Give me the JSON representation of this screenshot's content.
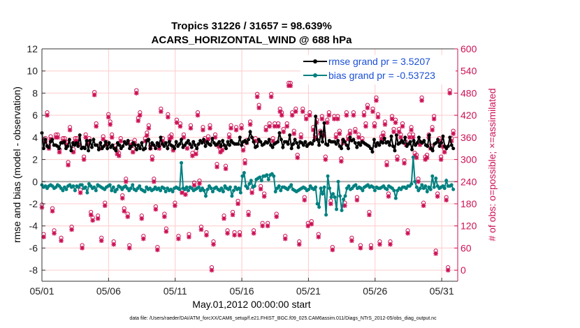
{
  "chart_data": {
    "type": "line",
    "title": "Tropics 31226 / 31657 = 98.639%",
    "subtitle": "ACARS_HORIZONTAL_WIND @ 688 hPa",
    "xlabel": "May.01,2012 00:00:00 start",
    "ylabel_left": "rmse and bias (model - observation)",
    "ylabel_right": "# of obs: o=possible; ×=assimilated",
    "footnote": "data file: /Users/raeder/DAI/ATM_forcXX/CAM6_setup/f.e21.FHIST_BGC.f09_025.CAM6assim.011/Diags_NTrS_2012-05/obs_diag_output.nc",
    "xlim": [
      1,
      32.2
    ],
    "ylim_left": [
      -9,
      12
    ],
    "ylim_right": [
      -30,
      600
    ],
    "x_ticks": [
      1,
      6,
      11,
      16,
      21,
      26,
      31
    ],
    "x_tick_labels": [
      "05/01",
      "05/06",
      "05/11",
      "05/16",
      "05/21",
      "05/26",
      "05/31"
    ],
    "y_ticks_left": [
      -8,
      -6,
      -4,
      -2,
      0,
      2,
      4,
      6,
      8,
      10,
      12
    ],
    "y_ticks_right": [
      0,
      60,
      120,
      180,
      240,
      300,
      360,
      420,
      480,
      540,
      600
    ],
    "legend_position": "top-right",
    "legend": [
      "rmse grand pr = 3.5207",
      "bias grand pr = -0.53723"
    ],
    "colors": {
      "rmse": "#000000",
      "bias": "#008080",
      "obs": "#cc1155",
      "zero": "#aaaaaa",
      "grid": "#ffcccc",
      "legend_text": "#1a4fd6"
    },
    "series": [
      {
        "name": "rmse",
        "axis": "left",
        "values": [
          4.4,
          3.0,
          3.8,
          3.2,
          3.1,
          3.6,
          3.8,
          3.3,
          3.3,
          3.2,
          3.0,
          3.5,
          3.5,
          3.6,
          3.0,
          3.2,
          3.8,
          2.8,
          3.5,
          3.3,
          3.5,
          3.2,
          4.2,
          3.0,
          3.1,
          3.0,
          3.7,
          2.8,
          3.7,
          3.1,
          3.8,
          3.3,
          3.3,
          2.9,
          3.5,
          3.0,
          3.2,
          3.6,
          3.0,
          3.5,
          3.1,
          3.3,
          3.0,
          2.8,
          3.5,
          3.3,
          3.0,
          3.2,
          3.6,
          3.4,
          3.7,
          3.0,
          3.2,
          3.5,
          3.3,
          2.9,
          3.3,
          3.0,
          3.5,
          2.9,
          3.0,
          3.7,
          3.8,
          3.0,
          3.5,
          3.3,
          3.0,
          3.5,
          3.2,
          4.0,
          3.4,
          3.2,
          3.5,
          3.0,
          3.6,
          3.3,
          3.2,
          3.0,
          3.6,
          3.2,
          3.4,
          3.8,
          3.1,
          3.3,
          3.5,
          3.7,
          3.4,
          3.1,
          3.6,
          3.3,
          3.0,
          3.4,
          3.7,
          3.5,
          3.8,
          3.2,
          3.6,
          3.4,
          3.3,
          3.9,
          3.5,
          3.3,
          3.4,
          3.6,
          3.2,
          3.7,
          3.3,
          3.0,
          3.6,
          3.3,
          3.7,
          3.5,
          3.4,
          3.4,
          3.4,
          4.0,
          3.3,
          3.6,
          3.7,
          3.5,
          3.8,
          4.5,
          4.0,
          3.6,
          3.1,
          3.2,
          3.8,
          3.6,
          3.3,
          3.4,
          3.6,
          3.5,
          3.8,
          3.3,
          3.1,
          3.4,
          3.5,
          3.6,
          4.4,
          3.8,
          3.1,
          3.6,
          3.6,
          3.4,
          4.2,
          3.0,
          3.4,
          3.8,
          3.5,
          3.1,
          3.6,
          3.5,
          3.3,
          3.6,
          3.2,
          3.4,
          3.5,
          3.4,
          3.7,
          5.9,
          3.8,
          3.3,
          4.5,
          3.6,
          5.3,
          3.4,
          3.3,
          3.7,
          3.6,
          3.6,
          3.6,
          3.4,
          3.7,
          3.2,
          3.0,
          3.8,
          3.6,
          3.3,
          3.0,
          4.0,
          3.7,
          3.8,
          3.5,
          3.1,
          3.5,
          3.3,
          3.6,
          3.5,
          3.4,
          3.3,
          3.2,
          3.0,
          2.7,
          3.8,
          3.2,
          3.5,
          3.3,
          3.6,
          3.5,
          3.9,
          3.5,
          3.6,
          3.3,
          4.1,
          3.2,
          2.8,
          4.2,
          3.4,
          3.5,
          3.7,
          3.5,
          4.0,
          3.2,
          3.4,
          3.6,
          2.9,
          3.7,
          3.3,
          3.5,
          4.0,
          3.6,
          3.5,
          3.7,
          3.3,
          3.2,
          4.2,
          3.0,
          2.8,
          3.4,
          3.5,
          3.8,
          3.2,
          3.5,
          4.1,
          3.2,
          3.0,
          3.2,
          4.0,
          3.3,
          3.0
        ]
      },
      {
        "name": "bias",
        "axis": "left",
        "values": [
          -0.3,
          -0.5,
          -0.4,
          -0.6,
          -0.4,
          -0.3,
          -0.4,
          -0.6,
          -0.5,
          -0.3,
          -0.4,
          -0.6,
          -0.8,
          -0.5,
          -0.7,
          -0.4,
          -0.3,
          -0.5,
          -0.4,
          -0.8,
          -0.4,
          -0.5,
          -0.3,
          -0.3,
          -0.6,
          -0.5,
          -1.0,
          -0.2,
          -0.4,
          -0.6,
          -0.5,
          -0.8,
          -0.3,
          -0.4,
          -0.5,
          -0.6,
          -0.7,
          -0.5,
          -0.4,
          -0.3,
          -0.8,
          -0.5,
          -0.9,
          -0.7,
          -0.4,
          -0.5,
          -0.7,
          -0.5,
          -0.4,
          -0.6,
          -0.8,
          -0.6,
          -0.3,
          -0.7,
          -0.8,
          -0.6,
          -0.4,
          -0.7,
          -0.8,
          -0.9,
          -0.5,
          -0.7,
          -0.6,
          -0.8,
          -0.7,
          -0.5,
          -0.7,
          -0.6,
          -0.8,
          -0.5,
          -0.6,
          -0.9,
          -0.6,
          -0.8,
          -0.7,
          -0.9,
          -0.6,
          -0.5,
          -0.6,
          -0.7,
          1.7,
          -0.6,
          -0.7,
          -0.5,
          -0.8,
          -0.5,
          -0.6,
          -0.8,
          -0.7,
          -0.6,
          -0.5,
          -0.8,
          -0.6,
          -0.8,
          -1.3,
          -0.7,
          -0.4,
          -0.6,
          -0.9,
          -0.6,
          -0.5,
          -0.7,
          -0.8,
          -0.6,
          -0.9,
          -0.4,
          -0.6,
          -0.7,
          -0.5,
          -1.3,
          -0.8,
          -0.5,
          -0.7,
          -0.6,
          -1.0,
          0.5,
          0.8,
          -0.4,
          -0.6,
          -0.2,
          0.1,
          -0.5,
          -0.4,
          0.2,
          0.3,
          0.4,
          0.1,
          0.5,
          0.5,
          0.6,
          0.2,
          0.6,
          0.7,
          0.5,
          -0.9,
          -0.6,
          -0.4,
          -0.8,
          -0.5,
          -0.5,
          -0.6,
          -0.7,
          -0.5,
          -0.3,
          -0.7,
          -0.8,
          -0.9,
          -0.8,
          -0.7,
          -0.6,
          -0.5,
          -0.6,
          -0.8,
          -0.7,
          -0.4,
          -0.6,
          -0.7,
          -0.5,
          -2.0,
          -2.3,
          -0.6,
          -1.1,
          -0.5,
          -3.0,
          0.5,
          -0.6,
          -1.4,
          -1.1,
          -1.4,
          -2.5,
          0.0,
          -1.3,
          -2.6,
          -1.6,
          -1.3,
          -0.6,
          -0.4,
          -0.7,
          -0.6,
          -0.4,
          -0.3,
          -0.6,
          -0.5,
          -0.6,
          -0.8,
          -0.5,
          -0.4,
          -0.3,
          -0.5,
          -0.4,
          -0.5,
          -0.8,
          -0.5,
          -0.6,
          -0.6,
          -0.5,
          -0.4,
          -0.6,
          -0.7,
          -0.4,
          -0.5,
          -0.6,
          -0.8,
          -1.5,
          -0.8,
          -0.6,
          -0.7,
          -0.5,
          -0.5,
          -0.6,
          -0.4,
          -0.4,
          -0.2,
          2.2,
          0.0,
          -0.5,
          -0.8,
          -0.6,
          -0.3,
          -0.6,
          -0.4,
          -0.9,
          -0.5,
          -0.7,
          0.5,
          -0.5,
          0.3,
          -0.4,
          -0.6,
          -0.5,
          -0.4,
          -0.6,
          0.1,
          -0.4,
          -0.4,
          -0.3,
          -0.7
        ]
      },
      {
        "name": "obs_possible",
        "axis": "right",
        "values": [
          170,
          90,
          350,
          420,
          330,
          355,
          160,
          100,
          360,
          360,
          320,
          80,
          350,
          350,
          340,
          285,
          380,
          110,
          320,
          350,
          350,
          340,
          210,
          60,
          300,
          360,
          340,
          350,
          150,
          135,
          475,
          390,
          140,
          330,
          80,
          355,
          175,
          340,
          415,
          395,
          360,
          70,
          330,
          315,
          310,
          350,
          195,
          160,
          240,
          145,
          60,
          340,
          320,
          345,
          480,
          405,
          420,
          140,
          85,
          350,
          365,
          385,
          330,
          300,
          240,
          165,
          55,
          330,
          430,
          350,
          145,
          105,
          415,
          355,
          360,
          325,
          175,
          400,
          85,
          390,
          210,
          360,
          205,
          330,
          90,
          385,
          310,
          230,
          315,
          420,
          235,
          110,
          380,
          350,
          95,
          355,
          385,
          0,
          70,
          360,
          280,
          335,
          320,
          325,
          140,
          275,
          100,
          360,
          385,
          150,
          95,
          380,
          180,
          95,
          385,
          325,
          290,
          345,
          150,
          395,
          210,
          100,
          350,
          470,
          440,
          220,
          120,
          200,
          380,
          120,
          390,
          470,
          350,
          390,
          145,
          390,
          430,
          420,
          375,
          85,
          390,
          500,
          500,
          420,
          370,
          430,
          305,
          70,
          360,
          430,
          190,
          410,
          120,
          420,
          125,
          380,
          360,
          400,
          90,
          370,
          410,
          365,
          300,
          400,
          420,
          180,
          55,
          410,
          360,
          410,
          370,
          295,
          345,
          175,
          420,
          355,
          370,
          80,
          420,
          375,
          190,
          360,
          60,
          350,
          420,
          390,
          440,
          150,
          60,
          430,
          390,
          460,
          415,
          70,
          355,
          365,
          395,
          285,
          200,
          70,
          410,
          375,
          400,
          300,
          375,
          360,
          390,
          290,
          340,
          100,
          360,
          380,
          360,
          310,
          305,
          240,
          340,
          460,
          175,
          300,
          305,
          360,
          330,
          380,
          410,
          45,
          200,
          350,
          300,
          335,
          320,
          190,
          0,
          480,
          350,
          370
        ]
      },
      {
        "name": "obs_assimilated",
        "axis": "right",
        "values": [
          170,
          90,
          350,
          420,
          330,
          355,
          160,
          100,
          360,
          360,
          320,
          80,
          350,
          350,
          340,
          285,
          380,
          110,
          320,
          350,
          350,
          340,
          210,
          60,
          300,
          360,
          340,
          350,
          150,
          135,
          475,
          390,
          140,
          330,
          80,
          355,
          175,
          340,
          415,
          395,
          360,
          70,
          330,
          315,
          310,
          350,
          195,
          160,
          240,
          145,
          60,
          340,
          320,
          345,
          480,
          405,
          420,
          140,
          85,
          350,
          365,
          385,
          330,
          300,
          240,
          165,
          55,
          330,
          430,
          350,
          145,
          105,
          415,
          355,
          360,
          325,
          175,
          400,
          85,
          390,
          210,
          360,
          205,
          330,
          90,
          385,
          310,
          230,
          315,
          420,
          235,
          110,
          380,
          350,
          95,
          355,
          385,
          0,
          70,
          360,
          280,
          335,
          320,
          325,
          140,
          275,
          100,
          360,
          385,
          150,
          95,
          380,
          180,
          95,
          385,
          325,
          290,
          345,
          150,
          395,
          210,
          100,
          350,
          470,
          440,
          220,
          120,
          200,
          380,
          120,
          390,
          470,
          350,
          390,
          145,
          390,
          430,
          420,
          375,
          85,
          390,
          500,
          500,
          420,
          370,
          430,
          305,
          70,
          360,
          430,
          190,
          410,
          120,
          420,
          125,
          380,
          360,
          400,
          90,
          370,
          410,
          365,
          300,
          400,
          420,
          180,
          55,
          410,
          360,
          410,
          370,
          295,
          345,
          175,
          420,
          355,
          370,
          80,
          420,
          375,
          190,
          360,
          60,
          350,
          420,
          390,
          440,
          150,
          60,
          430,
          390,
          460,
          415,
          70,
          355,
          365,
          395,
          285,
          200,
          70,
          410,
          375,
          400,
          300,
          375,
          360,
          390,
          290,
          340,
          100,
          360,
          380,
          360,
          310,
          305,
          240,
          340,
          460,
          175,
          300,
          305,
          360,
          330,
          380,
          410,
          45,
          200,
          350,
          300,
          335,
          320,
          190,
          0,
          480,
          350,
          370
        ]
      }
    ]
  }
}
